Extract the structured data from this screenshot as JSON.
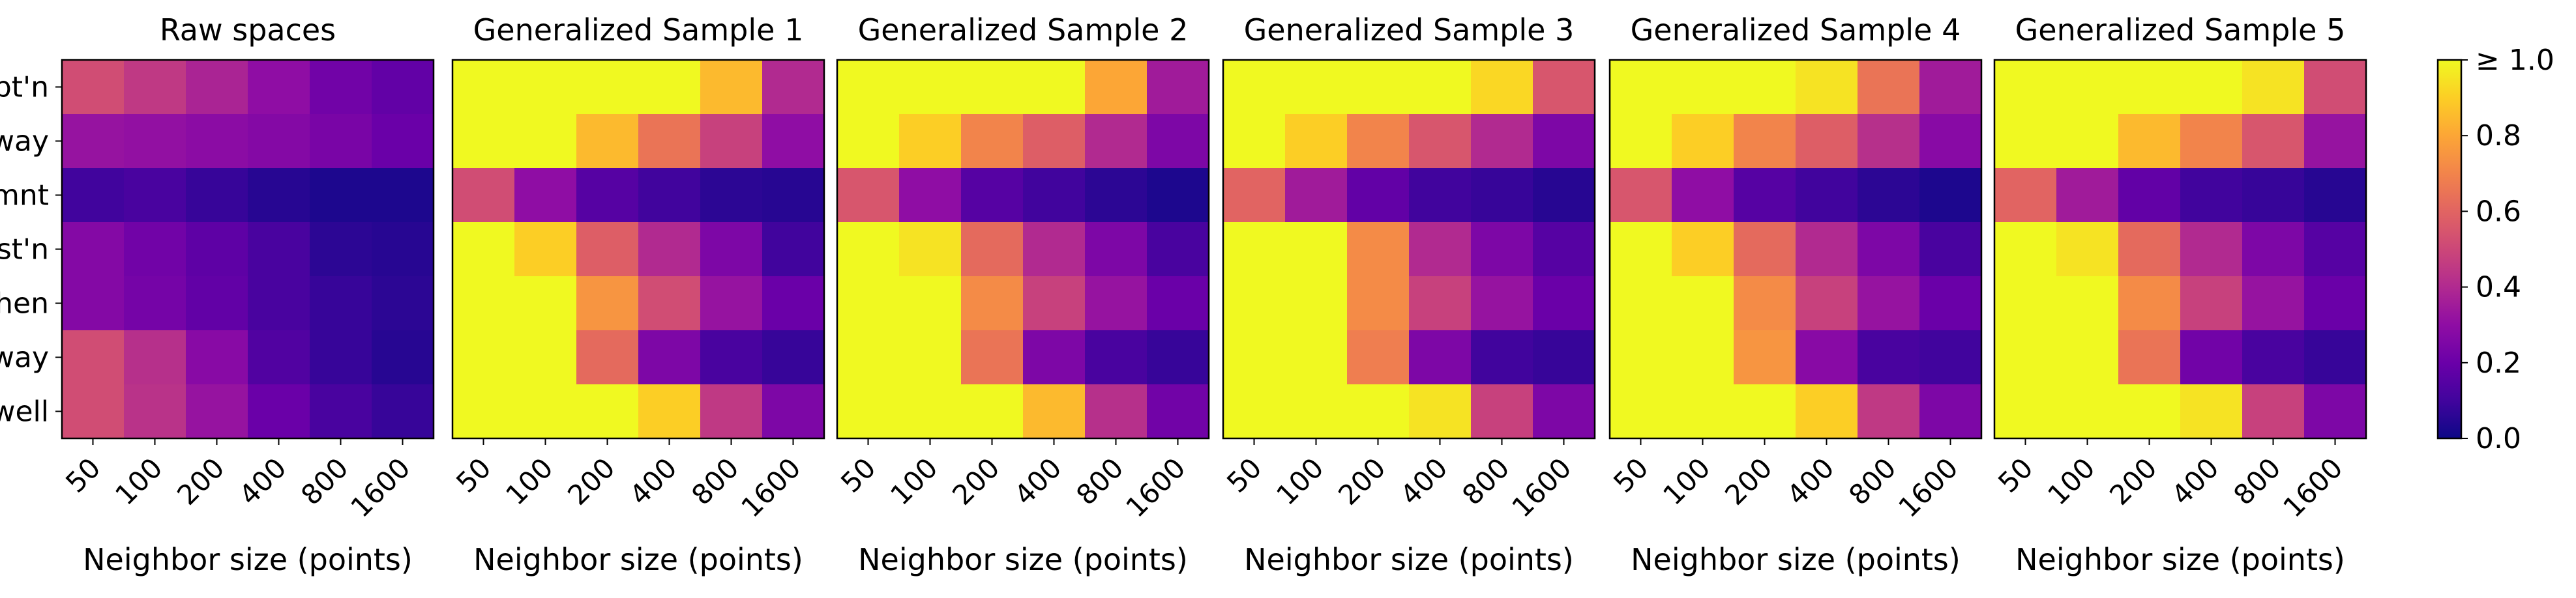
{
  "chart_data": {
    "type": "heatmap",
    "colormap": "plasma",
    "row_labels": [
      "Recpt'n",
      "Drvway",
      "Aprtmnt",
      "Wrkst'n",
      "Kitchen",
      "Hallway",
      "Strwell"
    ],
    "col_labels": [
      "50",
      "100",
      "200",
      "400",
      "800",
      "1600"
    ],
    "xlabel": "Neighbor size (points)",
    "colorbar": {
      "range": [
        0,
        1
      ],
      "ticks": [
        {
          "value": 0.0,
          "label": "0.0"
        },
        {
          "value": 0.2,
          "label": "0.2"
        },
        {
          "value": 0.4,
          "label": "0.4"
        },
        {
          "value": 0.6,
          "label": "0.6"
        },
        {
          "value": 0.8,
          "label": "0.8"
        },
        {
          "value": 1.0,
          "label": "≥ 1.0"
        }
      ]
    },
    "panels": [
      {
        "title": "Raw spaces",
        "values": [
          [
            0.52,
            0.45,
            0.38,
            0.3,
            0.22,
            0.18
          ],
          [
            0.32,
            0.31,
            0.29,
            0.27,
            0.24,
            0.2
          ],
          [
            0.1,
            0.12,
            0.08,
            0.05,
            0.03,
            0.03
          ],
          [
            0.27,
            0.22,
            0.17,
            0.12,
            0.06,
            0.05
          ],
          [
            0.27,
            0.23,
            0.18,
            0.12,
            0.08,
            0.06
          ],
          [
            0.52,
            0.42,
            0.28,
            0.14,
            0.08,
            0.05
          ],
          [
            0.52,
            0.43,
            0.32,
            0.2,
            0.12,
            0.08
          ]
        ]
      },
      {
        "title": "Generalized Sample 1",
        "values": [
          [
            1.0,
            1.0,
            1.0,
            1.0,
            0.85,
            0.4
          ],
          [
            1.0,
            1.0,
            0.85,
            0.65,
            0.48,
            0.3
          ],
          [
            0.52,
            0.3,
            0.15,
            0.1,
            0.06,
            0.05
          ],
          [
            1.0,
            0.9,
            0.58,
            0.4,
            0.25,
            0.1
          ],
          [
            1.0,
            1.0,
            0.75,
            0.52,
            0.32,
            0.2
          ],
          [
            1.0,
            1.0,
            0.62,
            0.25,
            0.12,
            0.08
          ],
          [
            1.0,
            1.0,
            1.0,
            0.9,
            0.45,
            0.25
          ]
        ]
      },
      {
        "title": "Generalized Sample 2",
        "values": [
          [
            1.0,
            1.0,
            1.0,
            1.0,
            0.8,
            0.35
          ],
          [
            1.0,
            0.9,
            0.7,
            0.58,
            0.4,
            0.25
          ],
          [
            0.55,
            0.3,
            0.15,
            0.1,
            0.06,
            0.03
          ],
          [
            1.0,
            0.95,
            0.62,
            0.4,
            0.25,
            0.12
          ],
          [
            1.0,
            1.0,
            0.72,
            0.48,
            0.32,
            0.2
          ],
          [
            1.0,
            1.0,
            0.65,
            0.25,
            0.12,
            0.08
          ],
          [
            1.0,
            1.0,
            1.0,
            0.85,
            0.42,
            0.22
          ]
        ]
      },
      {
        "title": "Generalized Sample 3",
        "values": [
          [
            1.0,
            1.0,
            1.0,
            1.0,
            0.92,
            0.55
          ],
          [
            1.0,
            0.9,
            0.7,
            0.55,
            0.4,
            0.25
          ],
          [
            0.6,
            0.35,
            0.18,
            0.1,
            0.08,
            0.05
          ],
          [
            1.0,
            1.0,
            0.72,
            0.4,
            0.25,
            0.15
          ],
          [
            1.0,
            1.0,
            0.72,
            0.48,
            0.32,
            0.2
          ],
          [
            1.0,
            1.0,
            0.68,
            0.25,
            0.1,
            0.08
          ],
          [
            1.0,
            1.0,
            1.0,
            0.95,
            0.48,
            0.25
          ]
        ]
      },
      {
        "title": "Generalized Sample 4",
        "values": [
          [
            1.0,
            1.0,
            1.0,
            0.95,
            0.65,
            0.35
          ],
          [
            1.0,
            0.9,
            0.7,
            0.58,
            0.42,
            0.28
          ],
          [
            0.55,
            0.3,
            0.15,
            0.1,
            0.06,
            0.03
          ],
          [
            1.0,
            0.9,
            0.62,
            0.4,
            0.25,
            0.12
          ],
          [
            1.0,
            1.0,
            0.72,
            0.48,
            0.32,
            0.2
          ],
          [
            1.0,
            1.0,
            0.75,
            0.28,
            0.12,
            0.1
          ],
          [
            1.0,
            1.0,
            1.0,
            0.9,
            0.45,
            0.25
          ]
        ]
      },
      {
        "title": "Generalized Sample 5",
        "values": [
          [
            1.0,
            1.0,
            1.0,
            1.0,
            0.95,
            0.52
          ],
          [
            1.0,
            1.0,
            0.85,
            0.7,
            0.55,
            0.32
          ],
          [
            0.6,
            0.35,
            0.18,
            0.1,
            0.08,
            0.05
          ],
          [
            1.0,
            0.95,
            0.62,
            0.4,
            0.25,
            0.15
          ],
          [
            1.0,
            1.0,
            0.72,
            0.48,
            0.32,
            0.2
          ],
          [
            1.0,
            1.0,
            0.65,
            0.22,
            0.12,
            0.08
          ],
          [
            1.0,
            1.0,
            1.0,
            0.95,
            0.48,
            0.25
          ]
        ]
      }
    ]
  }
}
